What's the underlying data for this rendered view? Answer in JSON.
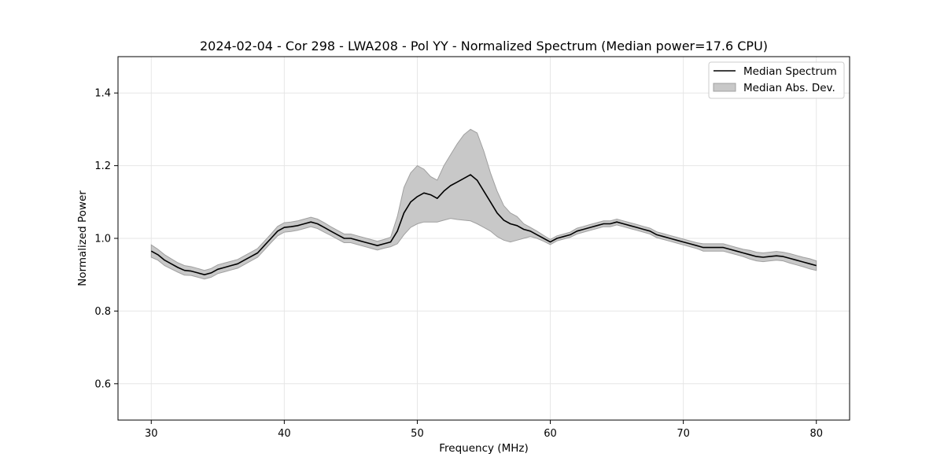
{
  "chart_data": {
    "type": "line",
    "title": "2024-02-04 - Cor 298 - LWA208 - Pol YY - Normalized Spectrum (Median power=17.6 CPU)",
    "xlabel": "Frequency (MHz)",
    "ylabel": "Normalized Power",
    "xlim": [
      27.5,
      82.5
    ],
    "ylim": [
      0.5,
      1.5
    ],
    "xticks": [
      30,
      40,
      50,
      60,
      70,
      80
    ],
    "yticks": [
      0.6,
      0.8,
      1.0,
      1.2,
      1.4
    ],
    "xtick_labels": [
      "30",
      "40",
      "50",
      "60",
      "70",
      "80"
    ],
    "ytick_labels": [
      "0.6",
      "0.8",
      "1.0",
      "1.2",
      "1.4"
    ],
    "grid": true,
    "legend_position": "top-right",
    "colors": {
      "line": "#000000",
      "band": "#c8c8c8",
      "band_edge": "#a0a0a0",
      "grid": "#e6e6e6"
    },
    "series": [
      {
        "name": "Median Spectrum",
        "kind": "line",
        "x": [
          30,
          30.5,
          31,
          31.5,
          32,
          32.5,
          33,
          33.5,
          34,
          34.5,
          35,
          35.5,
          36,
          36.5,
          37,
          37.5,
          38,
          38.5,
          39,
          39.5,
          40,
          40.5,
          41,
          41.5,
          42,
          42.5,
          43,
          43.5,
          44,
          44.5,
          45,
          45.5,
          46,
          46.5,
          47,
          47.5,
          48,
          48.5,
          49,
          49.5,
          50,
          50.5,
          51,
          51.5,
          52,
          52.5,
          53,
          53.5,
          54,
          54.5,
          55,
          55.5,
          56,
          56.5,
          57,
          57.5,
          58,
          58.5,
          59,
          59.5,
          60,
          60.5,
          61,
          61.5,
          62,
          62.5,
          63,
          63.5,
          64,
          64.5,
          65,
          65.5,
          66,
          66.5,
          67,
          67.5,
          68,
          68.5,
          69,
          69.5,
          70,
          70.5,
          71,
          71.5,
          72,
          72.5,
          73,
          73.5,
          74,
          74.5,
          75,
          75.5,
          76,
          76.5,
          77,
          77.5,
          78,
          78.5,
          79,
          79.5,
          80
        ],
        "y": [
          0.965,
          0.955,
          0.94,
          0.93,
          0.92,
          0.912,
          0.91,
          0.905,
          0.9,
          0.905,
          0.915,
          0.92,
          0.925,
          0.93,
          0.94,
          0.95,
          0.96,
          0.98,
          1.0,
          1.02,
          1.03,
          1.032,
          1.035,
          1.04,
          1.045,
          1.04,
          1.03,
          1.02,
          1.01,
          1.0,
          1.0,
          0.995,
          0.99,
          0.985,
          0.98,
          0.985,
          0.99,
          1.02,
          1.07,
          1.1,
          1.115,
          1.125,
          1.12,
          1.11,
          1.13,
          1.145,
          1.155,
          1.165,
          1.175,
          1.16,
          1.13,
          1.1,
          1.07,
          1.05,
          1.04,
          1.035,
          1.025,
          1.02,
          1.01,
          1.0,
          0.99,
          1.0,
          1.005,
          1.01,
          1.02,
          1.025,
          1.03,
          1.035,
          1.04,
          1.04,
          1.045,
          1.04,
          1.035,
          1.03,
          1.025,
          1.02,
          1.01,
          1.005,
          1.0,
          0.995,
          0.99,
          0.985,
          0.98,
          0.975,
          0.975,
          0.975,
          0.975,
          0.97,
          0.965,
          0.96,
          0.955,
          0.95,
          0.948,
          0.95,
          0.952,
          0.95,
          0.945,
          0.94,
          0.935,
          0.93,
          0.925
        ]
      },
      {
        "name": "Median Abs. Dev.",
        "kind": "band",
        "x": [
          30,
          30.5,
          31,
          31.5,
          32,
          32.5,
          33,
          33.5,
          34,
          34.5,
          35,
          35.5,
          36,
          36.5,
          37,
          37.5,
          38,
          38.5,
          39,
          39.5,
          40,
          40.5,
          41,
          41.5,
          42,
          42.5,
          43,
          43.5,
          44,
          44.5,
          45,
          45.5,
          46,
          46.5,
          47,
          47.5,
          48,
          48.5,
          49,
          49.5,
          50,
          50.5,
          51,
          51.5,
          52,
          52.5,
          53,
          53.5,
          54,
          54.5,
          55,
          55.5,
          56,
          56.5,
          57,
          57.5,
          58,
          58.5,
          59,
          59.5,
          60,
          60.5,
          61,
          61.5,
          62,
          62.5,
          63,
          63.5,
          64,
          64.5,
          65,
          65.5,
          66,
          66.5,
          67,
          67.5,
          68,
          68.5,
          69,
          69.5,
          70,
          70.5,
          71,
          71.5,
          72,
          72.5,
          73,
          73.5,
          74,
          74.5,
          75,
          75.5,
          76,
          76.5,
          77,
          77.5,
          78,
          78.5,
          79,
          79.5,
          80
        ],
        "upper": [
          0.982,
          0.97,
          0.955,
          0.944,
          0.933,
          0.925,
          0.922,
          0.917,
          0.912,
          0.917,
          0.927,
          0.932,
          0.937,
          0.942,
          0.952,
          0.962,
          0.972,
          0.992,
          1.012,
          1.033,
          1.043,
          1.045,
          1.048,
          1.053,
          1.058,
          1.053,
          1.043,
          1.032,
          1.022,
          1.012,
          1.012,
          1.007,
          1.002,
          0.997,
          0.992,
          0.997,
          1.003,
          1.06,
          1.14,
          1.18,
          1.2,
          1.19,
          1.17,
          1.16,
          1.2,
          1.23,
          1.26,
          1.285,
          1.3,
          1.29,
          1.24,
          1.18,
          1.13,
          1.09,
          1.07,
          1.06,
          1.04,
          1.03,
          1.02,
          1.008,
          0.997,
          1.007,
          1.012,
          1.017,
          1.028,
          1.033,
          1.038,
          1.043,
          1.048,
          1.048,
          1.053,
          1.048,
          1.043,
          1.038,
          1.033,
          1.028,
          1.018,
          1.013,
          1.008,
          1.003,
          0.998,
          0.993,
          0.988,
          0.985,
          0.985,
          0.985,
          0.985,
          0.98,
          0.975,
          0.97,
          0.967,
          0.962,
          0.96,
          0.962,
          0.964,
          0.962,
          0.958,
          0.953,
          0.948,
          0.944,
          0.938
        ],
        "lower": [
          0.948,
          0.94,
          0.925,
          0.916,
          0.907,
          0.899,
          0.898,
          0.893,
          0.888,
          0.893,
          0.903,
          0.908,
          0.913,
          0.918,
          0.928,
          0.938,
          0.948,
          0.968,
          0.988,
          1.007,
          1.017,
          1.019,
          1.022,
          1.027,
          1.032,
          1.027,
          1.017,
          1.008,
          0.998,
          0.988,
          0.988,
          0.983,
          0.978,
          0.973,
          0.968,
          0.973,
          0.977,
          0.985,
          1.01,
          1.03,
          1.04,
          1.045,
          1.045,
          1.045,
          1.05,
          1.055,
          1.052,
          1.05,
          1.048,
          1.04,
          1.03,
          1.02,
          1.005,
          0.995,
          0.99,
          0.995,
          1.0,
          1.005,
          1.0,
          0.992,
          0.983,
          0.993,
          0.998,
          1.003,
          1.012,
          1.017,
          1.022,
          1.027,
          1.032,
          1.032,
          1.037,
          1.032,
          1.027,
          1.022,
          1.017,
          1.012,
          1.002,
          0.997,
          0.992,
          0.987,
          0.982,
          0.977,
          0.972,
          0.965,
          0.965,
          0.965,
          0.965,
          0.96,
          0.955,
          0.95,
          0.943,
          0.938,
          0.936,
          0.938,
          0.94,
          0.938,
          0.932,
          0.927,
          0.922,
          0.916,
          0.912
        ]
      }
    ]
  }
}
